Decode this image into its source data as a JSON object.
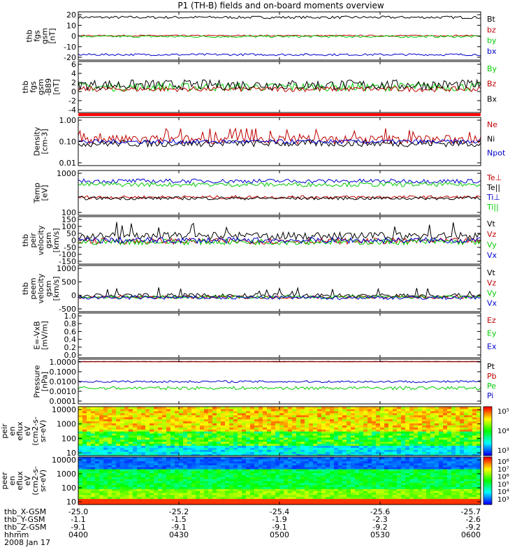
{
  "title": "P1 (TH-B) fields and on-board moments overview",
  "chart_data": [
    {
      "id": "fgs",
      "type": "line",
      "ylabel": [
        "thb",
        "fgs",
        "gsm",
        "[nT]"
      ],
      "ylim": [
        -22,
        22
      ],
      "yticks": [
        "20",
        "10",
        "0",
        "-10",
        "-20"
      ],
      "log": false,
      "series": [
        {
          "name": "Bt",
          "color": "#000000",
          "level": 17,
          "noise": 1.2,
          "spikes": false
        },
        {
          "name": "bz",
          "color": "#c00000",
          "level": 0.3,
          "noise": 0.6,
          "spikes": false
        },
        {
          "name": "by",
          "color": "#00cc00",
          "level": -0.5,
          "noise": 1.0,
          "spikes": false
        },
        {
          "name": "bx",
          "color": "#0000cc",
          "level": -17,
          "noise": 1.0,
          "spikes": false
        }
      ]
    },
    {
      "id": "fgs_dtrnd",
      "type": "line",
      "ylabel": [
        "thb",
        "fgs",
        "gsm",
        "-B89",
        "[nT]"
      ],
      "ylim": [
        -5,
        7
      ],
      "yticks": [
        "6",
        "4",
        "2",
        "0",
        "-2",
        "-4"
      ],
      "log": false,
      "series": [
        {
          "name": "By",
          "color": "#00cc00",
          "level": 1,
          "noise": 1.0,
          "spikes": false
        },
        {
          "name": "Bz",
          "color": "#c00000",
          "level": 0.5,
          "noise": 0.6,
          "spikes": false
        },
        {
          "name": "Bx",
          "color": "#000000",
          "level": 1.5,
          "noise": 1.2,
          "spikes": false
        }
      ]
    },
    {
      "id": "density",
      "type": "line",
      "ylabel": [
        "Density",
        "[cm-3]"
      ],
      "ylim": [
        0.01,
        1.5
      ],
      "yticks": [
        "1.00",
        "0.10",
        "0.01"
      ],
      "log": true,
      "series": [
        {
          "name": "Ne",
          "color": "#c00000",
          "level": 0.15,
          "noise": 0.4,
          "spikes": true
        },
        {
          "name": "Ni",
          "color": "#000000",
          "level": 0.1,
          "noise": 0.3,
          "spikes": false
        },
        {
          "name": "Npot",
          "color": "#0000cc",
          "level": 0.12,
          "noise": 0.2,
          "spikes": false
        }
      ]
    },
    {
      "id": "temp",
      "type": "line",
      "ylabel": [
        "Temp",
        "[eV]"
      ],
      "ylim": [
        40,
        5000
      ],
      "yticks": [
        "1000",
        "100"
      ],
      "log": true,
      "series": [
        {
          "name": "Te⊥",
          "color": "#c00000",
          "level": 280,
          "noise": 0.15,
          "spikes": false
        },
        {
          "name": "Te||",
          "color": "#000000",
          "level": 250,
          "noise": 0.15,
          "spikes": false
        },
        {
          "name": "Ti⊥",
          "color": "#0000cc",
          "level": 1600,
          "noise": 0.2,
          "spikes": false
        },
        {
          "name": "Ti||",
          "color": "#00cc00",
          "level": 1100,
          "noise": 0.2,
          "spikes": false
        }
      ]
    },
    {
      "id": "peir_vel",
      "type": "line",
      "ylabel": [
        "thb",
        "peir",
        "velocity",
        "gsm",
        "[km/s]"
      ],
      "ylim": [
        -160,
        160
      ],
      "yticks": [
        "150",
        "100",
        "50",
        "0",
        "-50",
        "-100",
        "-150"
      ],
      "log": false,
      "series": [
        {
          "name": "Vt",
          "color": "#000000",
          "level": 30,
          "noise": 25,
          "spikes": true
        },
        {
          "name": "Vz",
          "color": "#c00000",
          "level": -5,
          "noise": 20,
          "spikes": false
        },
        {
          "name": "Vy",
          "color": "#00cc00",
          "level": -10,
          "noise": 20,
          "spikes": false
        },
        {
          "name": "Vx",
          "color": "#0000cc",
          "level": 0,
          "noise": 20,
          "spikes": false
        }
      ]
    },
    {
      "id": "peem_vel",
      "type": "line",
      "ylabel": [
        "thb",
        "peem",
        "velocity",
        "gsm",
        "[km/s]"
      ],
      "ylim": [
        -550,
        1200
      ],
      "yticks": [
        "1000",
        "500",
        "0",
        "-500"
      ],
      "log": false,
      "series": [
        {
          "name": "Vt",
          "color": "#000000",
          "level": 60,
          "noise": 80,
          "spikes": true
        },
        {
          "name": "Vz",
          "color": "#c00000",
          "level": 0,
          "noise": 60,
          "spikes": false
        },
        {
          "name": "Vy",
          "color": "#00cc00",
          "level": 0,
          "noise": 60,
          "spikes": false
        },
        {
          "name": "Vx",
          "color": "#0000cc",
          "level": -20,
          "noise": 70,
          "spikes": false
        }
      ]
    },
    {
      "id": "efield",
      "type": "line",
      "ylabel": [
        "E=-VxB",
        "[mV/m]"
      ],
      "ylim": [
        0,
        1
      ],
      "yticks": [
        "1.0",
        "0.8",
        "0.6",
        "0.4",
        "0.2",
        "0.0"
      ],
      "log": false,
      "series": [
        {
          "name": "Ez",
          "color": "#c00000",
          "level": null,
          "noise": 0,
          "spikes": false
        },
        {
          "name": "Ey",
          "color": "#00cc00",
          "level": null,
          "noise": 0,
          "spikes": false
        },
        {
          "name": "Ex",
          "color": "#0000cc",
          "level": null,
          "noise": 0,
          "spikes": false
        }
      ]
    },
    {
      "id": "pressure",
      "type": "line",
      "ylabel": [
        "Pressure",
        "[nPa]"
      ],
      "ylim": [
        0.0001,
        1.5
      ],
      "yticks": [
        "1.0000",
        "0.1000",
        "0.0100",
        "0.0010",
        "0.0001"
      ],
      "log": true,
      "series": [
        {
          "name": "Pt",
          "color": "#000000",
          "level": 0.9,
          "noise": 0.02,
          "spikes": false
        },
        {
          "name": "Pb",
          "color": "#c00000",
          "level": 0.85,
          "noise": 0.02,
          "spikes": false
        },
        {
          "name": "Pe",
          "color": "#00cc00",
          "level": 0.003,
          "noise": 0.3,
          "spikes": false
        },
        {
          "name": "Pi",
          "color": "#0000cc",
          "level": 0.012,
          "noise": 0.2,
          "spikes": false
        }
      ]
    },
    {
      "id": "peir_en",
      "type": "heatmap",
      "ylabel": [
        "thb",
        "peir",
        "en",
        "eflux",
        "eV",
        "(cm2-s-",
        "sr-eV)"
      ],
      "ylim": [
        7,
        25000
      ],
      "yticks": [
        "10000",
        "1000",
        "100",
        "10"
      ],
      "log": true,
      "colorbar": [
        "10⁵",
        "10⁴",
        "10³"
      ]
    },
    {
      "id": "peer_en",
      "type": "heatmap",
      "ylabel": [
        "thb",
        "peer",
        "en",
        "eflux",
        "eV",
        "(cm2-s-",
        "sr-eV)"
      ],
      "ylim": [
        7,
        25000
      ],
      "yticks": [
        "10000",
        "1000",
        "100",
        "10"
      ],
      "log": true,
      "colorbar": [
        "10⁸",
        "10⁷",
        "10⁶",
        "10⁵",
        "10⁴",
        "10³"
      ]
    }
  ],
  "xaxis": {
    "rows": [
      {
        "label": "thb_X-GSM",
        "values": [
          "-25.0",
          "-25.2",
          "-25.4",
          "-25.6",
          "-25.7"
        ]
      },
      {
        "label": "thb_Y-GSM",
        "values": [
          "-1.1",
          "-1.5",
          "-1.9",
          "-2.3",
          "-2.6"
        ]
      },
      {
        "label": "thb_Z-GSM",
        "values": [
          "-9.1",
          "-9.1",
          "-9.1",
          "-9.2",
          "-9.2"
        ]
      },
      {
        "label": "hhmm",
        "values": [
          "0400",
          "0430",
          "0500",
          "0530",
          "0600"
        ]
      }
    ],
    "date": "2008 Jan 17"
  }
}
